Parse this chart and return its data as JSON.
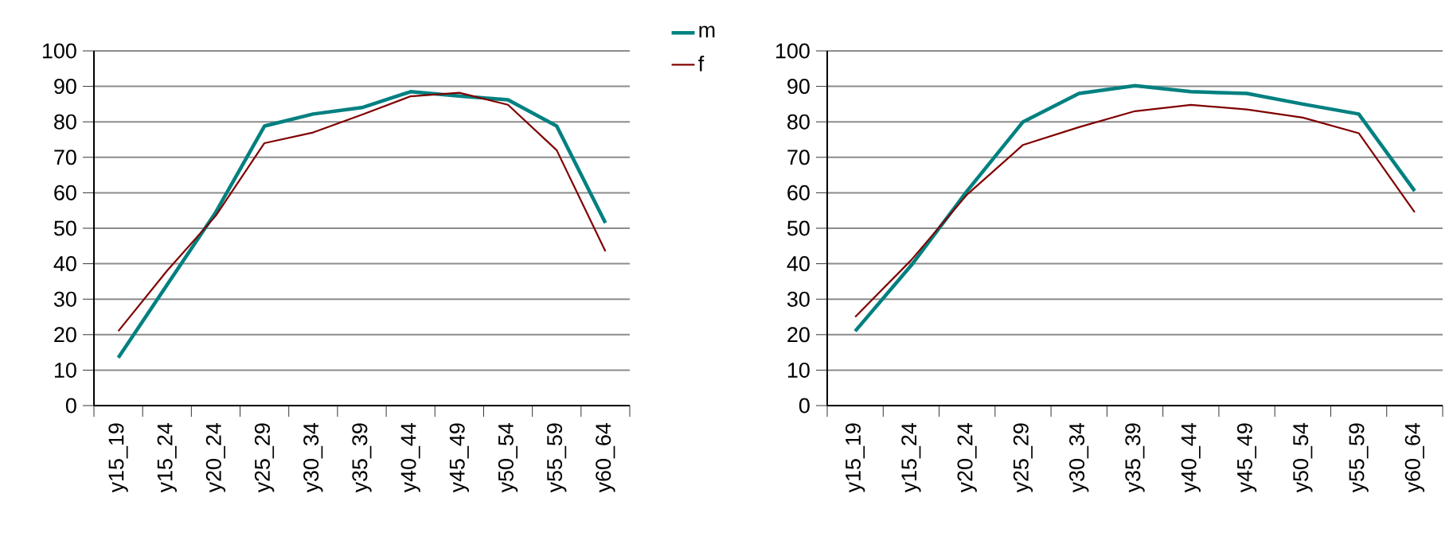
{
  "chart_data": [
    {
      "type": "line",
      "categories": [
        "y15_19",
        "y15_24",
        "y20_24",
        "y25_29",
        "y30_34",
        "y35_39",
        "y40_44",
        "y45_49",
        "y50_54",
        "y55_59",
        "y60_64"
      ],
      "series": [
        {
          "name": "m",
          "color": "#008080",
          "values": [
            13.5,
            34,
            54.5,
            78.8,
            82.2,
            84,
            88.5,
            87.3,
            86.2,
            78.8,
            51.5
          ]
        },
        {
          "name": "f",
          "color": "#800000",
          "values": [
            21,
            38,
            53.5,
            74,
            77,
            82,
            87.2,
            88.2,
            84.8,
            72,
            43.5
          ]
        }
      ],
      "ylim": [
        0,
        100
      ],
      "yticks": [
        0,
        10,
        20,
        30,
        40,
        50,
        60,
        70,
        80,
        90,
        100
      ],
      "grid": "y",
      "legend": "top right",
      "marker": "none",
      "line_style": "solid"
    },
    {
      "type": "line",
      "categories": [
        "y15_19",
        "y15_24",
        "y20_24",
        "y25_29",
        "y30_34",
        "y35_39",
        "y40_44",
        "y45_49",
        "y50_54",
        "y55_59",
        "y60_64"
      ],
      "series": [
        {
          "color": "#008080",
          "values": [
            21,
            39.5,
            60.5,
            80,
            88,
            90.2,
            88.5,
            88,
            85,
            82.2,
            60.5
          ]
        },
        {
          "color": "#800000",
          "values": [
            25,
            41,
            59.5,
            73.5,
            78.5,
            83,
            84.8,
            83.5,
            81.2,
            76.8,
            54.5
          ]
        }
      ],
      "ylim": [
        0,
        100
      ],
      "yticks": [
        0,
        10,
        20,
        30,
        40,
        50,
        60,
        70,
        80,
        90,
        100
      ],
      "grid": "y",
      "marker": "none",
      "line_style": "solid"
    }
  ]
}
